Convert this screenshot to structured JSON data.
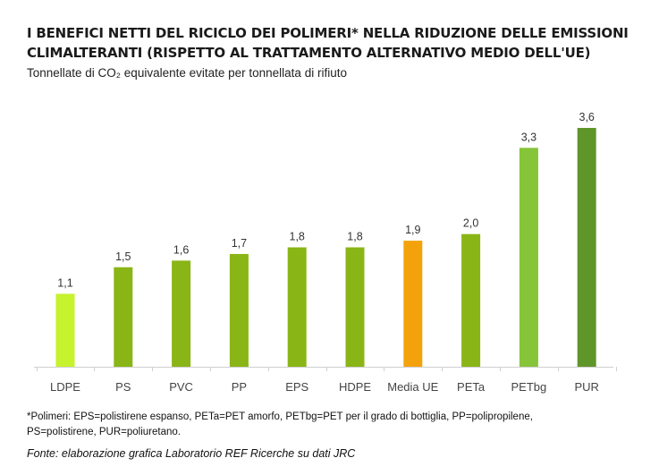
{
  "header": {
    "title": "I BENEFICI NETTI DEL RICICLO DEI POLIMERI* NELLA RIDUZIONE DELLE EMISSIONI CLIMALTERANTI (RISPETTO AL TRATTAMENTO ALTERNATIVO MEDIO DELL'UE)",
    "subtitle": "Tonnellate di CO₂ equivalente evitate per tonnellata di rifiuto"
  },
  "chart_data": {
    "type": "bar",
    "title": "I BENEFICI NETTI DEL RICICLO DEI POLIMERI* NELLA RIDUZIONE DELLE EMISSIONI CLIMALTERANTI (RISPETTO AL TRATTAMENTO ALTERNATIVO MEDIO DELL'UE)",
    "subtitle": "Tonnellate di CO₂ equivalente evitate per tonnellata di rifiuto",
    "categories": [
      "LDPE",
      "PS",
      "PVC",
      "PP",
      "EPS",
      "HDPE",
      "Media UE",
      "PETa",
      "PETbg",
      "PUR"
    ],
    "values": [
      1.1,
      1.5,
      1.6,
      1.7,
      1.8,
      1.8,
      1.9,
      2.0,
      3.3,
      3.6
    ],
    "value_labels": [
      "1,1",
      "1,5",
      "1,6",
      "1,7",
      "1,8",
      "1,8",
      "1,9",
      "2,0",
      "3,3",
      "3,6"
    ],
    "colors": [
      "#c6f22e",
      "#8ab516",
      "#8ab516",
      "#8ab516",
      "#8ab516",
      "#8ab516",
      "#f4a20b",
      "#8ab516",
      "#86c43a",
      "#5f962a"
    ],
    "xlabel": "",
    "ylabel": "",
    "ylim": [
      0,
      3.6
    ],
    "grid": false,
    "legend": "none"
  },
  "footnote": {
    "line1": "*Polimeri: EPS=polistirene espanso, PETa=PET amorfo, PETbg=PET per il grado di bottiglia, PP=polipropilene,",
    "line2": "PS=polistirene, PUR=poliuretano."
  },
  "source": "Fonte: elaborazione grafica Laboratorio REF Ricerche su dati JRC"
}
